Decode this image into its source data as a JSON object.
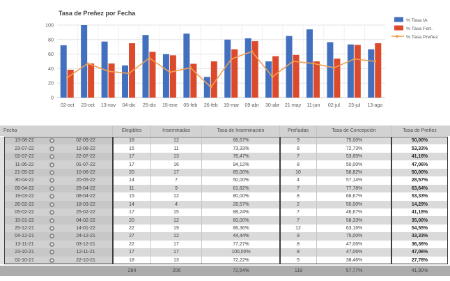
{
  "chart": {
    "title": "Tasa de Preñez por Fecha",
    "y_ticks": [
      0,
      20,
      40,
      60,
      80,
      100
    ]
  },
  "chart_data": {
    "type": "bar",
    "title": "Tasa de Preñez por Fecha",
    "categories": [
      "02-oct",
      "23-oct",
      "13-nov",
      "04-dic",
      "25-dic",
      "15-ene",
      "05-feb",
      "26-feb",
      "19-mar",
      "09-abr",
      "30-abr",
      "21-may",
      "11-jun",
      "02-jul",
      "23-jul",
      "13-ago"
    ],
    "series": [
      {
        "name": "% Tasa IA",
        "type": "bar",
        "color": "#4270BE",
        "values": [
          72.22,
          100.0,
          77.27,
          44.44,
          86.36,
          60.0,
          88.24,
          28.57,
          80.0,
          81.82,
          50.0,
          85.0,
          94.12,
          76.47,
          73.33,
          66.67
        ]
      },
      {
        "name": "% Tasa Fert.",
        "type": "bar",
        "color": "#DC4A2C",
        "values": [
          38.46,
          47.06,
          47.06,
          75.0,
          63.16,
          58.33,
          46.67,
          50.0,
          66.67,
          77.78,
          57.14,
          58.82,
          50.0,
          53.85,
          72.73,
          75.0
        ]
      },
      {
        "name": "% Tasa Preñez",
        "type": "line",
        "color": "#F0A052",
        "values": [
          27.78,
          47.06,
          36.36,
          33.33,
          54.55,
          35.0,
          41.18,
          14.29,
          53.33,
          63.64,
          28.57,
          50.0,
          47.06,
          41.18,
          53.33,
          50.0
        ]
      }
    ],
    "ylim": [
      0,
      100
    ],
    "grid": true,
    "legend_position": "top-right"
  },
  "table": {
    "headers": {
      "fecha": "Fecha",
      "elegibles": "Elegibles",
      "inseminadas": "Inseminadas",
      "tasa_inseminacion": "Tasa de Inseminación",
      "prenadas": "Preñadas",
      "tasa_concepcion": "Tasa de Concepción",
      "tasa_prenez": "Tasa de Preñez"
    },
    "rows": [
      {
        "from": "13-08-22",
        "to": "02-09-22",
        "elegibles": "18",
        "inseminadas": "12",
        "tasa_inseminacion": "66,67%",
        "prenadas": "9",
        "tasa_concepcion": "75,00%",
        "tasa_prenez": "50,00%"
      },
      {
        "from": "23-07-22",
        "to": "12-08-22",
        "elegibles": "15",
        "inseminadas": "11",
        "tasa_inseminacion": "73,33%",
        "prenadas": "8",
        "tasa_concepcion": "72,73%",
        "tasa_prenez": "53,33%"
      },
      {
        "from": "02-07-22",
        "to": "22-07-22",
        "elegibles": "17",
        "inseminadas": "13",
        "tasa_inseminacion": "76,47%",
        "prenadas": "7",
        "tasa_concepcion": "53,85%",
        "tasa_prenez": "41,18%"
      },
      {
        "from": "11-06-22",
        "to": "01-07-22",
        "elegibles": "17",
        "inseminadas": "16",
        "tasa_inseminacion": "94,12%",
        "prenadas": "8",
        "tasa_concepcion": "50,00%",
        "tasa_prenez": "47,06%"
      },
      {
        "from": "21-05-22",
        "to": "10-06-22",
        "elegibles": "20",
        "inseminadas": "17",
        "tasa_inseminacion": "85,00%",
        "prenadas": "10",
        "tasa_concepcion": "58,82%",
        "tasa_prenez": "50,00%"
      },
      {
        "from": "30-04-22",
        "to": "20-05-22",
        "elegibles": "14",
        "inseminadas": "7",
        "tasa_inseminacion": "50,00%",
        "prenadas": "4",
        "tasa_concepcion": "57,14%",
        "tasa_prenez": "28,57%"
      },
      {
        "from": "09-04-22",
        "to": "29-04-22",
        "elegibles": "11",
        "inseminadas": "9",
        "tasa_inseminacion": "81,82%",
        "prenadas": "7",
        "tasa_concepcion": "77,78%",
        "tasa_prenez": "63,64%"
      },
      {
        "from": "19-03-22",
        "to": "08-04-22",
        "elegibles": "15",
        "inseminadas": "12",
        "tasa_inseminacion": "80,00%",
        "prenadas": "8",
        "tasa_concepcion": "66,67%",
        "tasa_prenez": "53,33%"
      },
      {
        "from": "26-02-22",
        "to": "18-03-22",
        "elegibles": "14",
        "inseminadas": "4",
        "tasa_inseminacion": "28,57%",
        "prenadas": "2",
        "tasa_concepcion": "50,00%",
        "tasa_prenez": "14,29%"
      },
      {
        "from": "05-02-22",
        "to": "25-02-22",
        "elegibles": "17",
        "inseminadas": "15",
        "tasa_inseminacion": "88,24%",
        "prenadas": "7",
        "tasa_concepcion": "46,67%",
        "tasa_prenez": "41,18%"
      },
      {
        "from": "15-01-22",
        "to": "04-02-22",
        "elegibles": "20",
        "inseminadas": "12",
        "tasa_inseminacion": "60,00%",
        "prenadas": "7",
        "tasa_concepcion": "58,33%",
        "tasa_prenez": "35,00%"
      },
      {
        "from": "25-12-21",
        "to": "14-01-22",
        "elegibles": "22",
        "inseminadas": "19",
        "tasa_inseminacion": "86,36%",
        "prenadas": "12",
        "tasa_concepcion": "63,16%",
        "tasa_prenez": "54,55%"
      },
      {
        "from": "04-12-21",
        "to": "24-12-21",
        "elegibles": "27",
        "inseminadas": "12",
        "tasa_inseminacion": "44,44%",
        "prenadas": "9",
        "tasa_concepcion": "75,00%",
        "tasa_prenez": "33,33%"
      },
      {
        "from": "13-11-21",
        "to": "03-12-21",
        "elegibles": "22",
        "inseminadas": "17",
        "tasa_inseminacion": "77,27%",
        "prenadas": "8",
        "tasa_concepcion": "47,06%",
        "tasa_prenez": "36,36%"
      },
      {
        "from": "23-10-21",
        "to": "12-11-21",
        "elegibles": "17",
        "inseminadas": "17",
        "tasa_inseminacion": "100,00%",
        "prenadas": "8",
        "tasa_concepcion": "47,06%",
        "tasa_prenez": "47,06%"
      },
      {
        "from": "02-10-21",
        "to": "22-10-21",
        "elegibles": "18",
        "inseminadas": "13",
        "tasa_inseminacion": "72,22%",
        "prenadas": "5",
        "tasa_concepcion": "38,46%",
        "tasa_prenez": "27,78%"
      }
    ],
    "total": {
      "elegibles": "284",
      "inseminadas": "206",
      "tasa_inseminacion": "72,54%",
      "prenadas": "119",
      "tasa_concepcion": "57,77%",
      "tasa_prenez": "41,90%"
    }
  }
}
